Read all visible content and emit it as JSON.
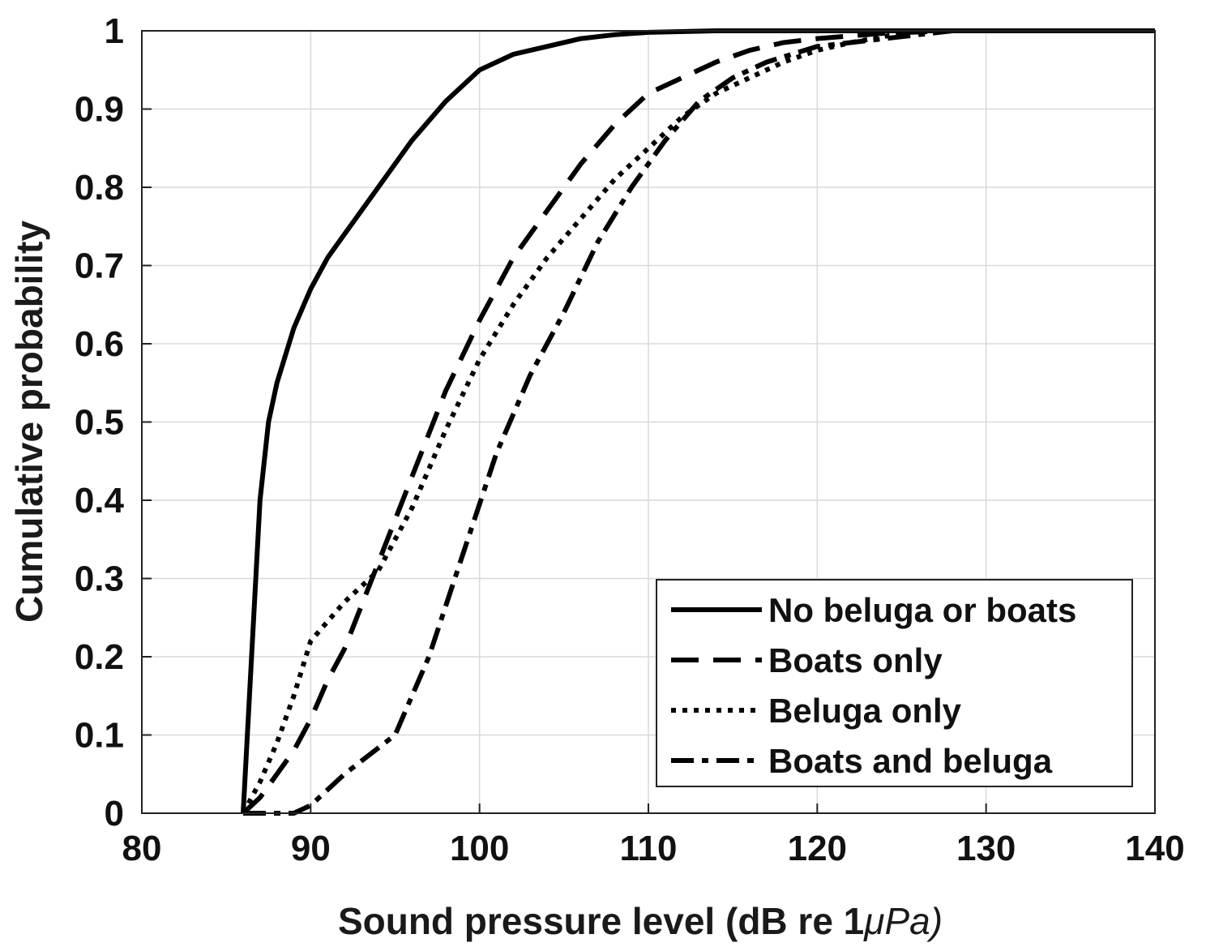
{
  "chart_data": {
    "type": "line",
    "xlabel": "Sound pressure level (dB re 1",
    "xlabel_unit": "μPa)",
    "ylabel": "Cumulative probability",
    "xlim": [
      80,
      140
    ],
    "ylim": [
      0,
      1
    ],
    "x_ticks": [
      "80",
      "90",
      "100",
      "110",
      "120",
      "130",
      "140"
    ],
    "y_ticks": [
      "0",
      "0.1",
      "0.2",
      "0.3",
      "0.4",
      "0.5",
      "0.6",
      "0.7",
      "0.8",
      "0.9",
      "1"
    ],
    "grid": true,
    "legend_position": "bottom-right",
    "series": [
      {
        "name": "No beluga or boats",
        "style": "solid",
        "x": [
          86,
          86.5,
          87,
          87.5,
          88,
          89,
          90,
          91,
          92,
          94,
          96,
          98,
          100,
          102,
          104,
          106,
          108,
          110,
          114,
          120,
          140
        ],
        "y": [
          0,
          0.2,
          0.4,
          0.5,
          0.55,
          0.62,
          0.67,
          0.71,
          0.74,
          0.8,
          0.86,
          0.91,
          0.95,
          0.97,
          0.98,
          0.99,
          0.995,
          0.998,
          1,
          1,
          1
        ]
      },
      {
        "name": "Boats only",
        "style": "dashed",
        "x": [
          86,
          87,
          88,
          89,
          90,
          91,
          92,
          94,
          96,
          98,
          100,
          102,
          104,
          106,
          108,
          110,
          112,
          114,
          116,
          118,
          120,
          124,
          128,
          140
        ],
        "y": [
          0,
          0.02,
          0.05,
          0.08,
          0.12,
          0.17,
          0.21,
          0.32,
          0.43,
          0.54,
          0.63,
          0.71,
          0.77,
          0.83,
          0.88,
          0.92,
          0.94,
          0.96,
          0.975,
          0.985,
          0.99,
          0.997,
          1,
          1
        ]
      },
      {
        "name": "Beluga only",
        "style": "dotted",
        "x": [
          86,
          87,
          88,
          89,
          90,
          92,
          94,
          96,
          98,
          100,
          102,
          104,
          106,
          108,
          110,
          112,
          114,
          116,
          118,
          120,
          122,
          124,
          126,
          140
        ],
        "y": [
          0,
          0.04,
          0.09,
          0.15,
          0.22,
          0.27,
          0.31,
          0.39,
          0.49,
          0.58,
          0.65,
          0.71,
          0.76,
          0.81,
          0.85,
          0.89,
          0.92,
          0.94,
          0.96,
          0.975,
          0.985,
          0.993,
          1,
          1
        ]
      },
      {
        "name": "Boats and beluga",
        "style": "dashdot",
        "x": [
          86,
          88,
          89,
          90,
          92,
          95,
          97,
          99,
          101,
          103,
          105,
          107,
          109,
          111,
          113,
          115,
          117,
          120,
          124,
          128,
          140
        ],
        "y": [
          0,
          0,
          0,
          0.01,
          0.05,
          0.1,
          0.2,
          0.33,
          0.46,
          0.56,
          0.64,
          0.73,
          0.8,
          0.86,
          0.91,
          0.94,
          0.96,
          0.98,
          0.99,
          1,
          1
        ]
      }
    ]
  }
}
